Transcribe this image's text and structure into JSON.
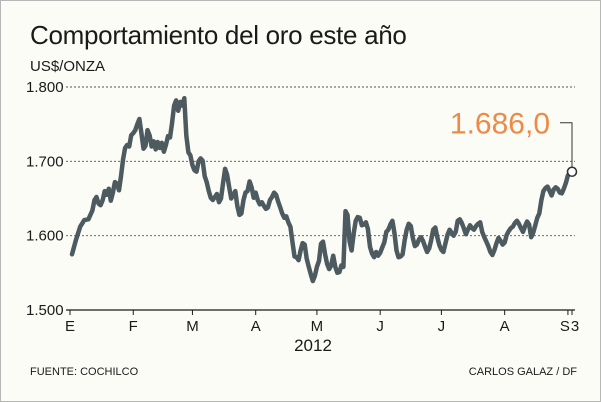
{
  "header": {
    "title": "Comportamiento del oro este año",
    "unit": "US$/ONZA"
  },
  "footer": {
    "source": "FUENTE: COCHILCO",
    "credit": "CARLOS GALAZ / DF"
  },
  "chart_data": {
    "type": "line",
    "title": "Comportamiento del oro este año",
    "ylabel": "US$/ONZA",
    "xlabel": "2012",
    "ylim": [
      1500,
      1800
    ],
    "yticks": [
      "1.800",
      "1.700",
      "1.600",
      "1.500"
    ],
    "ytick_values": [
      1800,
      1700,
      1600,
      1500
    ],
    "xticks": [
      "E",
      "F",
      "M",
      "A",
      "M",
      "J",
      "J",
      "A",
      "S",
      "3"
    ],
    "xtick_days": [
      0,
      31,
      60,
      91,
      121,
      152,
      182,
      213,
      244,
      246
    ],
    "grid": true,
    "last_value_label": "1.686,0",
    "colors": {
      "line": "#4d5a5f",
      "callout": "#ee8a45",
      "grid": "#555555"
    },
    "series": [
      {
        "points": [
          [
            1,
            1575
          ],
          [
            3,
            1595
          ],
          [
            5,
            1612
          ],
          [
            7,
            1621
          ],
          [
            9,
            1622
          ],
          [
            11,
            1634
          ],
          [
            12,
            1648
          ],
          [
            13,
            1652
          ],
          [
            14,
            1643
          ],
          [
            15,
            1641
          ],
          [
            16,
            1648
          ],
          [
            17,
            1660
          ],
          [
            18,
            1655
          ],
          [
            19,
            1663
          ],
          [
            20,
            1647
          ],
          [
            21,
            1658
          ],
          [
            22,
            1672
          ],
          [
            23,
            1670
          ],
          [
            24,
            1661
          ],
          [
            25,
            1680
          ],
          [
            26,
            1703
          ],
          [
            27,
            1718
          ],
          [
            28,
            1722
          ],
          [
            29,
            1720
          ],
          [
            30,
            1735
          ],
          [
            31,
            1738
          ],
          [
            32,
            1742
          ],
          [
            33,
            1750
          ],
          [
            34,
            1757
          ],
          [
            35,
            1738
          ],
          [
            36,
            1717
          ],
          [
            37,
            1721
          ],
          [
            38,
            1742
          ],
          [
            39,
            1735
          ],
          [
            40,
            1720
          ],
          [
            41,
            1727
          ],
          [
            42,
            1716
          ],
          [
            43,
            1726
          ],
          [
            44,
            1718
          ],
          [
            45,
            1725
          ],
          [
            46,
            1713
          ],
          [
            47,
            1722
          ],
          [
            48,
            1734
          ],
          [
            49,
            1732
          ],
          [
            50,
            1751
          ],
          [
            51,
            1775
          ],
          [
            52,
            1782
          ],
          [
            53,
            1768
          ],
          [
            54,
            1780
          ],
          [
            55,
            1775
          ],
          [
            56,
            1785
          ],
          [
            57,
            1735
          ],
          [
            58,
            1712
          ],
          [
            59,
            1708
          ],
          [
            60,
            1695
          ],
          [
            61,
            1688
          ],
          [
            62,
            1686
          ],
          [
            63,
            1700
          ],
          [
            64,
            1704
          ],
          [
            65,
            1701
          ],
          [
            66,
            1680
          ],
          [
            67,
            1672
          ],
          [
            68,
            1660
          ],
          [
            69,
            1651
          ],
          [
            70,
            1648
          ],
          [
            71,
            1652
          ],
          [
            72,
            1656
          ],
          [
            73,
            1645
          ],
          [
            74,
            1650
          ],
          [
            75,
            1670
          ],
          [
            76,
            1690
          ],
          [
            77,
            1682
          ],
          [
            78,
            1665
          ],
          [
            79,
            1650
          ],
          [
            80,
            1655
          ],
          [
            81,
            1660
          ],
          [
            82,
            1640
          ],
          [
            83,
            1628
          ],
          [
            84,
            1630
          ],
          [
            85,
            1648
          ],
          [
            86,
            1658
          ],
          [
            87,
            1660
          ],
          [
            88,
            1673
          ],
          [
            89,
            1665
          ],
          [
            90,
            1651
          ],
          [
            91,
            1658
          ],
          [
            92,
            1648
          ],
          [
            93,
            1642
          ],
          [
            94,
            1645
          ],
          [
            95,
            1640
          ],
          [
            96,
            1636
          ],
          [
            97,
            1638
          ],
          [
            98,
            1648
          ],
          [
            99,
            1652
          ],
          [
            100,
            1658
          ],
          [
            101,
            1655
          ],
          [
            102,
            1646
          ],
          [
            103,
            1638
          ],
          [
            104,
            1630
          ],
          [
            105,
            1624
          ],
          [
            106,
            1626
          ],
          [
            107,
            1618
          ],
          [
            108,
            1612
          ],
          [
            109,
            1592
          ],
          [
            110,
            1572
          ],
          [
            111,
            1571
          ],
          [
            112,
            1567
          ],
          [
            113,
            1580
          ],
          [
            114,
            1590
          ],
          [
            115,
            1588
          ],
          [
            116,
            1569
          ],
          [
            117,
            1558
          ],
          [
            118,
            1548
          ],
          [
            119,
            1539
          ],
          [
            120,
            1546
          ],
          [
            121,
            1558
          ],
          [
            122,
            1566
          ],
          [
            123,
            1589
          ],
          [
            124,
            1592
          ],
          [
            125,
            1575
          ],
          [
            126,
            1562
          ],
          [
            127,
            1555
          ],
          [
            128,
            1560
          ],
          [
            129,
            1573
          ],
          [
            130,
            1558
          ],
          [
            131,
            1550
          ],
          [
            132,
            1551
          ],
          [
            133,
            1560
          ],
          [
            134,
            1558
          ],
          [
            135,
            1633
          ],
          [
            136,
            1628
          ],
          [
            137,
            1592
          ],
          [
            138,
            1580
          ],
          [
            139,
            1603
          ],
          [
            140,
            1620
          ],
          [
            141,
            1625
          ],
          [
            142,
            1624
          ],
          [
            143,
            1614
          ],
          [
            144,
            1615
          ],
          [
            145,
            1618
          ],
          [
            146,
            1609
          ],
          [
            147,
            1585
          ],
          [
            148,
            1576
          ],
          [
            149,
            1571
          ],
          [
            150,
            1578
          ],
          [
            151,
            1573
          ],
          [
            152,
            1577
          ],
          [
            153,
            1584
          ],
          [
            154,
            1591
          ],
          [
            155,
            1605
          ],
          [
            156,
            1608
          ],
          [
            157,
            1615
          ],
          [
            158,
            1620
          ],
          [
            159,
            1603
          ],
          [
            160,
            1580
          ],
          [
            161,
            1571
          ],
          [
            162,
            1572
          ],
          [
            163,
            1575
          ],
          [
            164,
            1594
          ],
          [
            165,
            1608
          ],
          [
            166,
            1616
          ],
          [
            167,
            1613
          ],
          [
            168,
            1597
          ],
          [
            169,
            1586
          ],
          [
            170,
            1588
          ],
          [
            171,
            1595
          ],
          [
            172,
            1598
          ],
          [
            173,
            1593
          ],
          [
            174,
            1585
          ],
          [
            175,
            1578
          ],
          [
            176,
            1583
          ],
          [
            177,
            1594
          ],
          [
            178,
            1608
          ],
          [
            179,
            1611
          ],
          [
            180,
            1598
          ],
          [
            181,
            1587
          ],
          [
            182,
            1581
          ],
          [
            183,
            1578
          ],
          [
            184,
            1590
          ],
          [
            185,
            1601
          ],
          [
            186,
            1608
          ],
          [
            187,
            1604
          ],
          [
            188,
            1600
          ],
          [
            189,
            1605
          ],
          [
            190,
            1620
          ],
          [
            191,
            1622
          ],
          [
            192,
            1617
          ],
          [
            193,
            1610
          ],
          [
            194,
            1602
          ],
          [
            195,
            1608
          ],
          [
            196,
            1614
          ],
          [
            197,
            1610
          ],
          [
            198,
            1608
          ],
          [
            199,
            1613
          ],
          [
            200,
            1616
          ],
          [
            201,
            1618
          ],
          [
            202,
            1605
          ],
          [
            203,
            1598
          ],
          [
            204,
            1592
          ],
          [
            205,
            1586
          ],
          [
            206,
            1578
          ],
          [
            207,
            1574
          ],
          [
            208,
            1581
          ],
          [
            209,
            1590
          ],
          [
            210,
            1597
          ],
          [
            211,
            1593
          ],
          [
            212,
            1588
          ],
          [
            213,
            1591
          ],
          [
            214,
            1601
          ],
          [
            215,
            1606
          ],
          [
            216,
            1610
          ],
          [
            217,
            1612
          ],
          [
            218,
            1617
          ],
          [
            219,
            1620
          ],
          [
            220,
            1616
          ],
          [
            221,
            1610
          ],
          [
            222,
            1605
          ],
          [
            223,
            1613
          ],
          [
            224,
            1619
          ],
          [
            225,
            1615
          ],
          [
            226,
            1598
          ],
          [
            227,
            1604
          ],
          [
            228,
            1614
          ],
          [
            229,
            1624
          ],
          [
            230,
            1630
          ],
          [
            231,
            1648
          ],
          [
            232,
            1660
          ],
          [
            233,
            1664
          ],
          [
            234,
            1666
          ],
          [
            235,
            1660
          ],
          [
            236,
            1654
          ],
          [
            237,
            1662
          ],
          [
            238,
            1665
          ],
          [
            239,
            1663
          ],
          [
            240,
            1658
          ],
          [
            241,
            1657
          ],
          [
            242,
            1663
          ],
          [
            243,
            1671
          ],
          [
            244,
            1681
          ],
          [
            245,
            1684
          ],
          [
            246,
            1686
          ]
        ]
      }
    ]
  }
}
